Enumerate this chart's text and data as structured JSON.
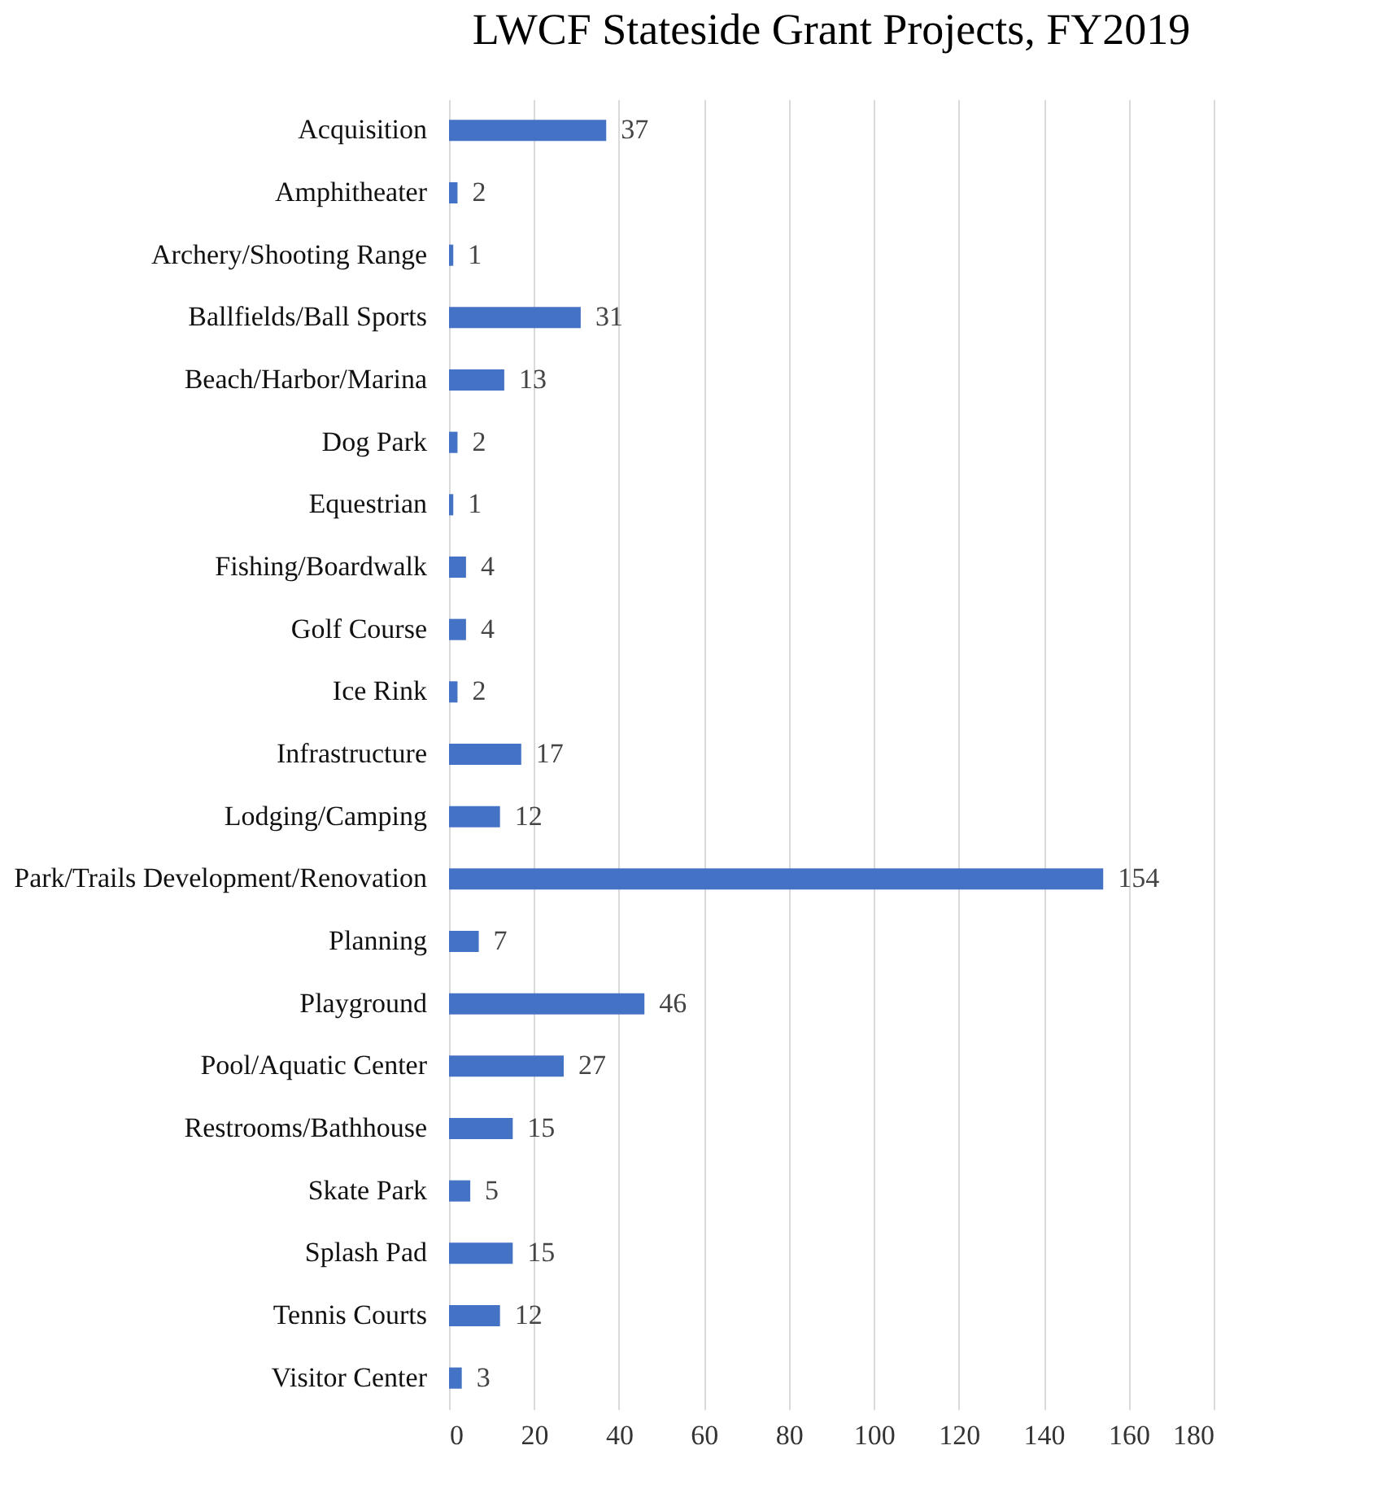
{
  "chart_data": {
    "type": "bar",
    "orientation": "horizontal",
    "title": "LWCF Stateside Grant Projects, FY2019",
    "categories": [
      "Acquisition",
      "Amphitheater",
      "Archery/Shooting Range",
      "Ballfields/Ball Sports",
      "Beach/Harbor/Marina",
      "Dog Park",
      "Equestrian",
      "Fishing/Boardwalk",
      "Golf Course",
      "Ice Rink",
      "Infrastructure",
      "Lodging/Camping",
      "Park/Trails Development/Renovation",
      "Planning",
      "Playground",
      "Pool/Aquatic Center",
      "Restrooms/Bathhouse",
      "Skate Park",
      "Splash Pad",
      "Tennis Courts",
      "Visitor Center"
    ],
    "values": [
      37,
      2,
      1,
      31,
      13,
      2,
      1,
      4,
      4,
      2,
      17,
      12,
      154,
      7,
      46,
      27,
      15,
      5,
      15,
      12,
      3
    ],
    "color": "#4472c4",
    "xlim": [
      0,
      180
    ],
    "xticks": [
      0,
      20,
      40,
      60,
      80,
      100,
      120,
      140,
      160,
      180
    ],
    "grid": "x",
    "data_labels": true
  }
}
